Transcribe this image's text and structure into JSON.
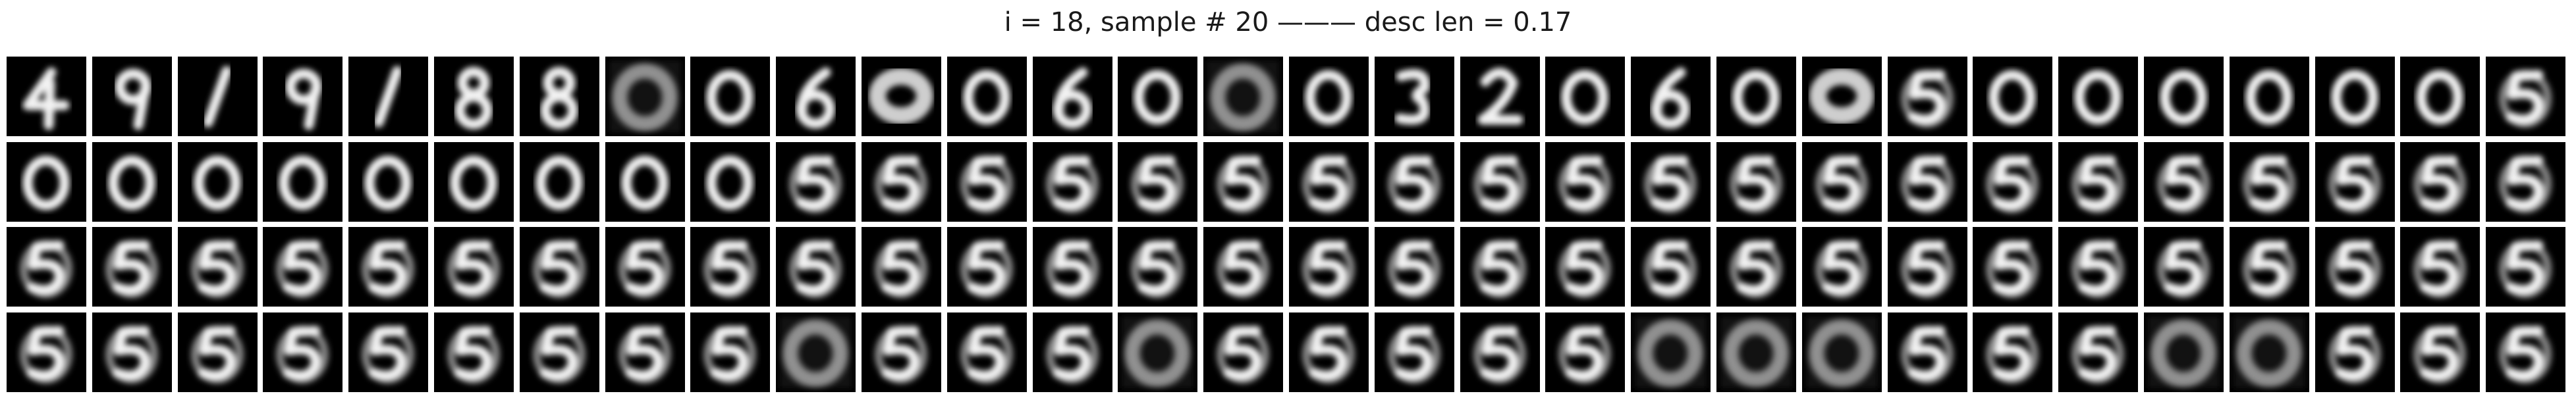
{
  "title": "i = 18, sample # 20 ——— desc len = 0.17",
  "grid": {
    "rows": 4,
    "cols": 30
  },
  "glyph_legend": {
    "4": "digit-four",
    "9": "digit-nine",
    "1": "digit-one",
    "8": "digit-eight",
    "0": "digit-zero",
    "6": "digit-six",
    "3": "digit-three",
    "2": "digit-two",
    "5": "digit-five",
    "b": "blob",
    "s": "smudge"
  },
  "rows": [
    [
      "4",
      "9",
      "1",
      "9",
      "1",
      "8",
      "8",
      "b",
      "0",
      "6",
      "s",
      "0",
      "6",
      "0",
      "b",
      "0",
      "3",
      "2",
      "0",
      "6",
      "0",
      "s",
      "5",
      "0",
      "0",
      "0",
      "0",
      "0",
      "0",
      "5"
    ],
    [
      "0",
      "0",
      "0",
      "0",
      "0",
      "0",
      "0",
      "0",
      "0",
      "5",
      "5",
      "5",
      "5",
      "5",
      "5",
      "5",
      "5",
      "5",
      "5",
      "5",
      "5",
      "5",
      "5",
      "5",
      "5",
      "5",
      "5",
      "5",
      "5",
      "5"
    ],
    [
      "5",
      "5",
      "5",
      "5",
      "5",
      "5",
      "5",
      "5",
      "5",
      "5",
      "5",
      "5",
      "5",
      "5",
      "5",
      "5",
      "5",
      "5",
      "5",
      "5",
      "5",
      "5",
      "5",
      "5",
      "5",
      "5",
      "5",
      "5",
      "5",
      "5"
    ],
    [
      "5",
      "5",
      "5",
      "5",
      "5",
      "5",
      "5",
      "5",
      "5",
      "b",
      "5",
      "5",
      "5",
      "b",
      "5",
      "5",
      "5",
      "5",
      "5",
      "b",
      "b",
      "b",
      "5",
      "5",
      "5",
      "b",
      "b",
      "5",
      "5",
      "5"
    ]
  ]
}
